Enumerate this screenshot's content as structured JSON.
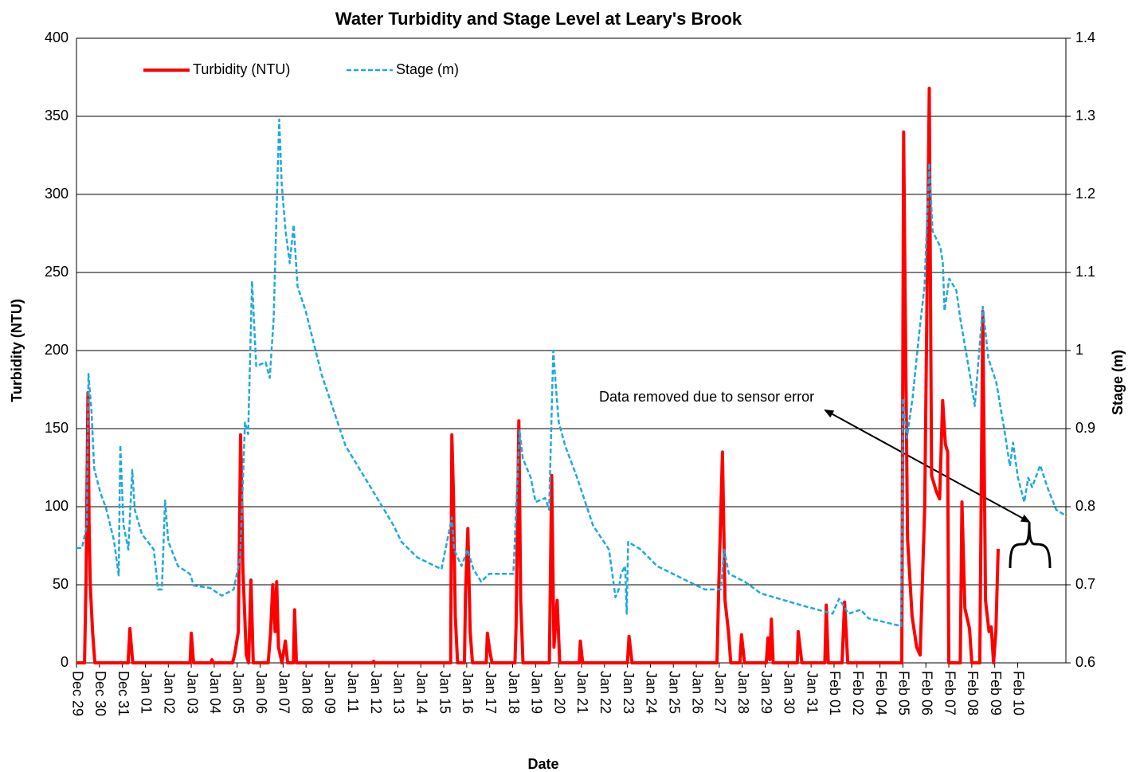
{
  "chart_data": {
    "type": "line",
    "title": "Water Turbidity and Stage Level at Leary's Brook",
    "x_label": "Date",
    "y_label": "Turbidity (NTU)",
    "y2_label": "Stage (m)",
    "annotation": "Data removed due to sensor error",
    "legend": "upper left",
    "grid": true,
    "xlim": [
      0,
      43.1
    ],
    "xticks": [
      {
        "value": 0,
        "label": "Dec 29"
      },
      {
        "value": 1,
        "label": "Dec 30"
      },
      {
        "value": 2,
        "label": "Dec 31"
      },
      {
        "value": 3,
        "label": "Jan 01"
      },
      {
        "value": 4,
        "label": "Jan 02"
      },
      {
        "value": 5,
        "label": "Jan 03"
      },
      {
        "value": 6,
        "label": "Jan 04"
      },
      {
        "value": 7,
        "label": "Jan 05"
      },
      {
        "value": 8,
        "label": "Jan 06"
      },
      {
        "value": 9,
        "label": "Jan 07"
      },
      {
        "value": 10,
        "label": "Jan 08"
      },
      {
        "value": 11,
        "label": "Jan 09"
      },
      {
        "value": 12,
        "label": "Jan 11"
      },
      {
        "value": 13,
        "label": "Jan 12"
      },
      {
        "value": 14,
        "label": "Jan 13"
      },
      {
        "value": 15,
        "label": "Jan 14"
      },
      {
        "value": 16,
        "label": "Jan 15"
      },
      {
        "value": 17,
        "label": "Jan 16"
      },
      {
        "value": 18,
        "label": "Jan 17"
      },
      {
        "value": 19,
        "label": "Jan 18"
      },
      {
        "value": 20,
        "label": "Jan 19"
      },
      {
        "value": 21,
        "label": "Jan 20"
      },
      {
        "value": 22,
        "label": "Jan 21"
      },
      {
        "value": 23,
        "label": "Jan 22"
      },
      {
        "value": 24,
        "label": "Jan 23"
      },
      {
        "value": 25,
        "label": "Jan 24"
      },
      {
        "value": 26,
        "label": "Jan 25"
      },
      {
        "value": 27,
        "label": "Jan 26"
      },
      {
        "value": 28,
        "label": "Jan 27"
      },
      {
        "value": 29,
        "label": "Jan 28"
      },
      {
        "value": 30,
        "label": "Jan 29"
      },
      {
        "value": 31,
        "label": "Jan 30"
      },
      {
        "value": 32,
        "label": "Jan 31"
      },
      {
        "value": 33,
        "label": "Feb 01"
      },
      {
        "value": 34,
        "label": "Feb 02"
      },
      {
        "value": 35,
        "label": "Feb 04"
      },
      {
        "value": 36,
        "label": "Feb 05"
      },
      {
        "value": 37,
        "label": "Feb 06"
      },
      {
        "value": 38,
        "label": "Feb 07"
      },
      {
        "value": 39,
        "label": "Feb 08"
      },
      {
        "value": 40,
        "label": "Feb 09"
      },
      {
        "value": 41,
        "label": "Feb 10"
      }
    ],
    "ylim": [
      0,
      400
    ],
    "yticks": [
      0,
      50,
      100,
      150,
      200,
      250,
      300,
      350,
      400
    ],
    "y2lim": [
      0.6,
      1.4
    ],
    "y2ticks": [
      0.6,
      0.7,
      0.8,
      0.9,
      1,
      1.1,
      1.2,
      1.3,
      1.4
    ],
    "series": [
      {
        "name": "Turbidity (NTU)",
        "color": "#ff0000",
        "axis": "y",
        "dash": "solid",
        "x": [
          0,
          0.35,
          0.42,
          0.5,
          0.55,
          0.6,
          0.7,
          0.8,
          2.25,
          2.33,
          2.45,
          4.95,
          5.0,
          5.1,
          5.85,
          5.9,
          5.95,
          6.8,
          6.9,
          7.05,
          7.15,
          7.25,
          7.4,
          7.5,
          7.6,
          7.7,
          8.35,
          8.45,
          8.55,
          8.65,
          8.72,
          8.8,
          8.95,
          9.1,
          9.2,
          9.45,
          9.5,
          9.58,
          12.9,
          12.95,
          13.0,
          16.3,
          16.35,
          16.42,
          16.5,
          16.6,
          16.9,
          16.95,
          17.05,
          17.15,
          17.25,
          17.85,
          17.9,
          18.0,
          18.1,
          19.1,
          19.15,
          19.27,
          19.35,
          19.45,
          20.6,
          20.7,
          20.8,
          20.94,
          21.05,
          21.9,
          21.95,
          22.05,
          24.0,
          24.07,
          24.2,
          27.9,
          27.98,
          28.14,
          28.25,
          28.4,
          28.5,
          28.9,
          28.97,
          29.1,
          30.05,
          30.12,
          30.2,
          30.27,
          30.35,
          31.4,
          31.44,
          31.6,
          32.6,
          32.66,
          32.75,
          33.35,
          33.46,
          33.6,
          35.95,
          36.03,
          36.1,
          36.2,
          36.4,
          36.6,
          36.75,
          36.95,
          37.15,
          37.25,
          37.45,
          37.6,
          37.73,
          37.85,
          37.95,
          38.0,
          38.5,
          38.57,
          38.7,
          38.9,
          39.0,
          39.35,
          39.48,
          39.6,
          39.75,
          39.85,
          39.95,
          40.05,
          40.15
        ],
        "values": [
          0,
          0,
          55,
          173,
          90,
          50,
          20,
          0,
          0,
          22,
          0,
          0,
          19,
          0,
          0,
          2,
          0,
          0,
          6,
          20,
          146,
          60,
          5,
          0,
          53,
          0,
          0,
          18,
          50,
          20,
          52,
          10,
          0,
          14,
          0,
          0,
          34,
          0,
          0,
          1,
          0,
          0,
          146,
          108,
          30,
          0,
          0,
          45,
          86,
          20,
          0,
          0,
          19,
          8,
          0,
          0,
          23,
          155,
          40,
          0,
          0,
          120,
          10,
          40,
          0,
          0,
          14,
          0,
          0,
          17,
          0,
          0,
          50,
          135,
          40,
          20,
          0,
          0,
          18,
          0,
          0,
          16,
          2,
          28,
          0,
          0,
          20,
          0,
          0,
          37,
          0,
          0,
          39,
          0,
          0,
          340,
          230,
          80,
          30,
          10,
          5,
          100,
          368,
          120,
          110,
          105,
          168,
          140,
          135,
          0,
          0,
          103,
          35,
          22,
          0,
          0,
          225,
          40,
          20,
          23,
          0,
          20,
          73
        ]
      },
      {
        "name": "Stage (m)",
        "color": "#1ea8e0",
        "axis": "y2",
        "dash": "dashed",
        "x": [
          0,
          0.24,
          0.45,
          0.52,
          0.66,
          0.77,
          1.04,
          1.29,
          1.63,
          1.84,
          1.91,
          2.05,
          2.26,
          2.43,
          2.54,
          2.85,
          3.37,
          3.55,
          3.72,
          3.86,
          4.0,
          4.42,
          4.94,
          5.11,
          5.81,
          6.33,
          6.85,
          7.13,
          7.34,
          7.48,
          7.65,
          7.83,
          8.24,
          8.42,
          8.59,
          8.73,
          8.83,
          8.94,
          9.11,
          9.29,
          9.46,
          9.63,
          9.98,
          10.68,
          11.72,
          12.77,
          13.81,
          14.16,
          14.85,
          15.9,
          16.35,
          16.45,
          16.77,
          17.04,
          17.29,
          17.63,
          17.98,
          19.03,
          19.3,
          19.44,
          19.79,
          20.0,
          20.42,
          20.59,
          20.77,
          20.87,
          21.01,
          21.29,
          21.81,
          22.5,
          23.2,
          23.48,
          23.62,
          23.72,
          23.9,
          23.97,
          24.03,
          24.59,
          25.29,
          25.98,
          27.37,
          28.07,
          28.21,
          28.42,
          29.11,
          29.81,
          31.55,
          32.94,
          33.22,
          33.63,
          34.16,
          34.5,
          35.93,
          36.0,
          36.17,
          36.42,
          36.7,
          36.94,
          37.15,
          37.29,
          37.63,
          37.74,
          37.81,
          38.02,
          38.33,
          38.5,
          38.92,
          39.13,
          39.48,
          39.72,
          40.07,
          40.42,
          40.66,
          40.8,
          41.01,
          41.29,
          41.46,
          41.63,
          41.98,
          42.33,
          42.68,
          43.13
        ],
        "values": [
          0.747,
          0.747,
          0.776,
          0.97,
          0.92,
          0.849,
          0.818,
          0.798,
          0.757,
          0.712,
          0.879,
          0.776,
          0.745,
          0.847,
          0.796,
          0.765,
          0.745,
          0.694,
          0.694,
          0.808,
          0.755,
          0.724,
          0.714,
          0.699,
          0.696,
          0.686,
          0.694,
          0.735,
          0.908,
          0.893,
          1.089,
          0.98,
          0.985,
          0.965,
          1.041,
          1.194,
          1.296,
          1.214,
          1.153,
          1.112,
          1.161,
          1.082,
          1.051,
          0.969,
          0.878,
          0.827,
          0.776,
          0.755,
          0.735,
          0.72,
          0.786,
          0.745,
          0.724,
          0.745,
          0.72,
          0.704,
          0.714,
          0.714,
          0.898,
          0.862,
          0.837,
          0.806,
          0.811,
          0.796,
          1.0,
          0.959,
          0.908,
          0.878,
          0.837,
          0.776,
          0.745,
          0.684,
          0.694,
          0.714,
          0.724,
          0.663,
          0.755,
          0.745,
          0.724,
          0.714,
          0.694,
          0.694,
          0.745,
          0.714,
          0.704,
          0.689,
          0.674,
          0.663,
          0.682,
          0.663,
          0.668,
          0.657,
          0.647,
          0.939,
          0.888,
          0.939,
          1.02,
          1.082,
          1.24,
          1.153,
          1.133,
          1.112,
          1.051,
          1.092,
          1.077,
          1.041,
          0.969,
          0.929,
          1.056,
          0.99,
          0.959,
          0.898,
          0.852,
          0.882,
          0.837,
          0.806,
          0.837,
          0.825,
          0.853,
          0.822,
          0.796,
          0.788
        ]
      }
    ]
  }
}
